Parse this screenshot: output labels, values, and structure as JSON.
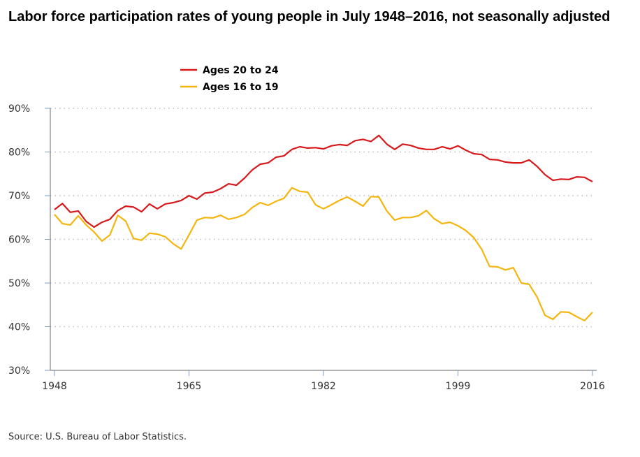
{
  "chart_data": {
    "type": "line",
    "title": "Labor force participation rates of young people in July 1948–2016, not seasonally adjusted",
    "source": "Source: U.S. Bureau of Labor Statistics.",
    "xlabel": "",
    "ylabel": "",
    "xlim": [
      1948,
      2016
    ],
    "ylim": [
      30,
      90
    ],
    "x_ticks": [
      "1948",
      "1965",
      "1982",
      "1999",
      "2016"
    ],
    "y_ticks": [
      "30%",
      "40%",
      "50%",
      "60%",
      "70%",
      "80%",
      "90%"
    ],
    "grid": "horizontal dotted",
    "legend_position": "top-center",
    "x": [
      1948,
      1949,
      1950,
      1951,
      1952,
      1953,
      1954,
      1955,
      1956,
      1957,
      1958,
      1959,
      1960,
      1961,
      1962,
      1963,
      1964,
      1965,
      1966,
      1967,
      1968,
      1969,
      1970,
      1971,
      1972,
      1973,
      1974,
      1975,
      1976,
      1977,
      1978,
      1979,
      1980,
      1981,
      1982,
      1983,
      1984,
      1985,
      1986,
      1987,
      1988,
      1989,
      1990,
      1991,
      1992,
      1993,
      1994,
      1995,
      1996,
      1997,
      1998,
      1999,
      2000,
      2001,
      2002,
      2003,
      2004,
      2005,
      2006,
      2007,
      2008,
      2009,
      2010,
      2011,
      2012,
      2013,
      2014,
      2015,
      2016
    ],
    "series": [
      {
        "name": "Ages 20 to 24",
        "color": "#d7191c",
        "values": [
          66.8,
          68.2,
          66.2,
          66.5,
          64.1,
          62.8,
          63.9,
          64.6,
          66.6,
          67.6,
          67.4,
          66.3,
          68.1,
          67.0,
          68.1,
          68.4,
          68.9,
          70.0,
          69.2,
          70.6,
          70.8,
          71.6,
          72.7,
          72.4,
          74.0,
          75.9,
          77.2,
          77.5,
          78.8,
          79.1,
          80.6,
          81.2,
          80.9,
          81.0,
          80.7,
          81.4,
          81.7,
          81.5,
          82.6,
          82.9,
          82.4,
          83.8,
          81.8,
          80.6,
          81.8,
          81.5,
          80.9,
          80.6,
          80.6,
          81.2,
          80.7,
          81.4,
          80.4,
          79.6,
          79.4,
          78.3,
          78.2,
          77.7,
          77.5,
          77.5,
          78.2,
          76.7,
          74.8,
          73.5,
          73.8,
          73.7,
          74.3,
          74.2,
          73.2
        ]
      },
      {
        "name": "Ages 16 to 19",
        "color": "#f5b50f",
        "values": [
          65.7,
          63.6,
          63.3,
          65.4,
          63.3,
          61.7,
          59.6,
          61.0,
          65.5,
          64.2,
          60.2,
          59.8,
          61.4,
          61.2,
          60.6,
          59.0,
          57.8,
          61.0,
          64.4,
          65.0,
          64.9,
          65.5,
          64.6,
          65.0,
          65.7,
          67.3,
          68.4,
          67.8,
          68.7,
          69.4,
          71.8,
          71.0,
          70.8,
          67.9,
          67.0,
          67.9,
          68.9,
          69.7,
          68.7,
          67.6,
          69.8,
          69.7,
          66.5,
          64.4,
          65.0,
          65.0,
          65.4,
          66.6,
          64.7,
          63.6,
          63.9,
          63.1,
          62.0,
          60.4,
          57.7,
          53.8,
          53.7,
          53.0,
          53.5,
          50.0,
          49.7,
          46.8,
          42.6,
          41.7,
          43.4,
          43.3,
          42.3,
          41.4,
          43.3
        ]
      }
    ]
  }
}
